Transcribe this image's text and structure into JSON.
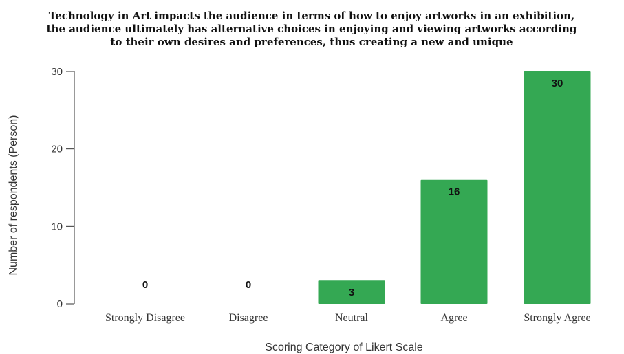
{
  "chart_data": {
    "type": "bar",
    "title_lines": [
      "Technology in Art impacts the audience in terms of how to enjoy artworks in an exhibition,",
      "the audience ultimately has alternative choices in enjoying and viewing artworks according",
      "to their own desires and preferences, thus creating a new and unique"
    ],
    "categories": [
      "Strongly Disagree",
      "Disagree",
      "Neutral",
      "Agree",
      "Strongly Agree"
    ],
    "values": [
      0,
      0,
      3,
      16,
      30
    ],
    "data_labels": [
      "0",
      "0",
      "3",
      "16",
      "30"
    ],
    "xlabel": "Scoring Category of Likert Scale",
    "ylabel": "Number of respondents (Person)",
    "ylim": [
      0,
      30
    ],
    "yticks": [
      0,
      10,
      20,
      30
    ],
    "bar_color": "#34a853",
    "grid": false,
    "legend": "none"
  }
}
